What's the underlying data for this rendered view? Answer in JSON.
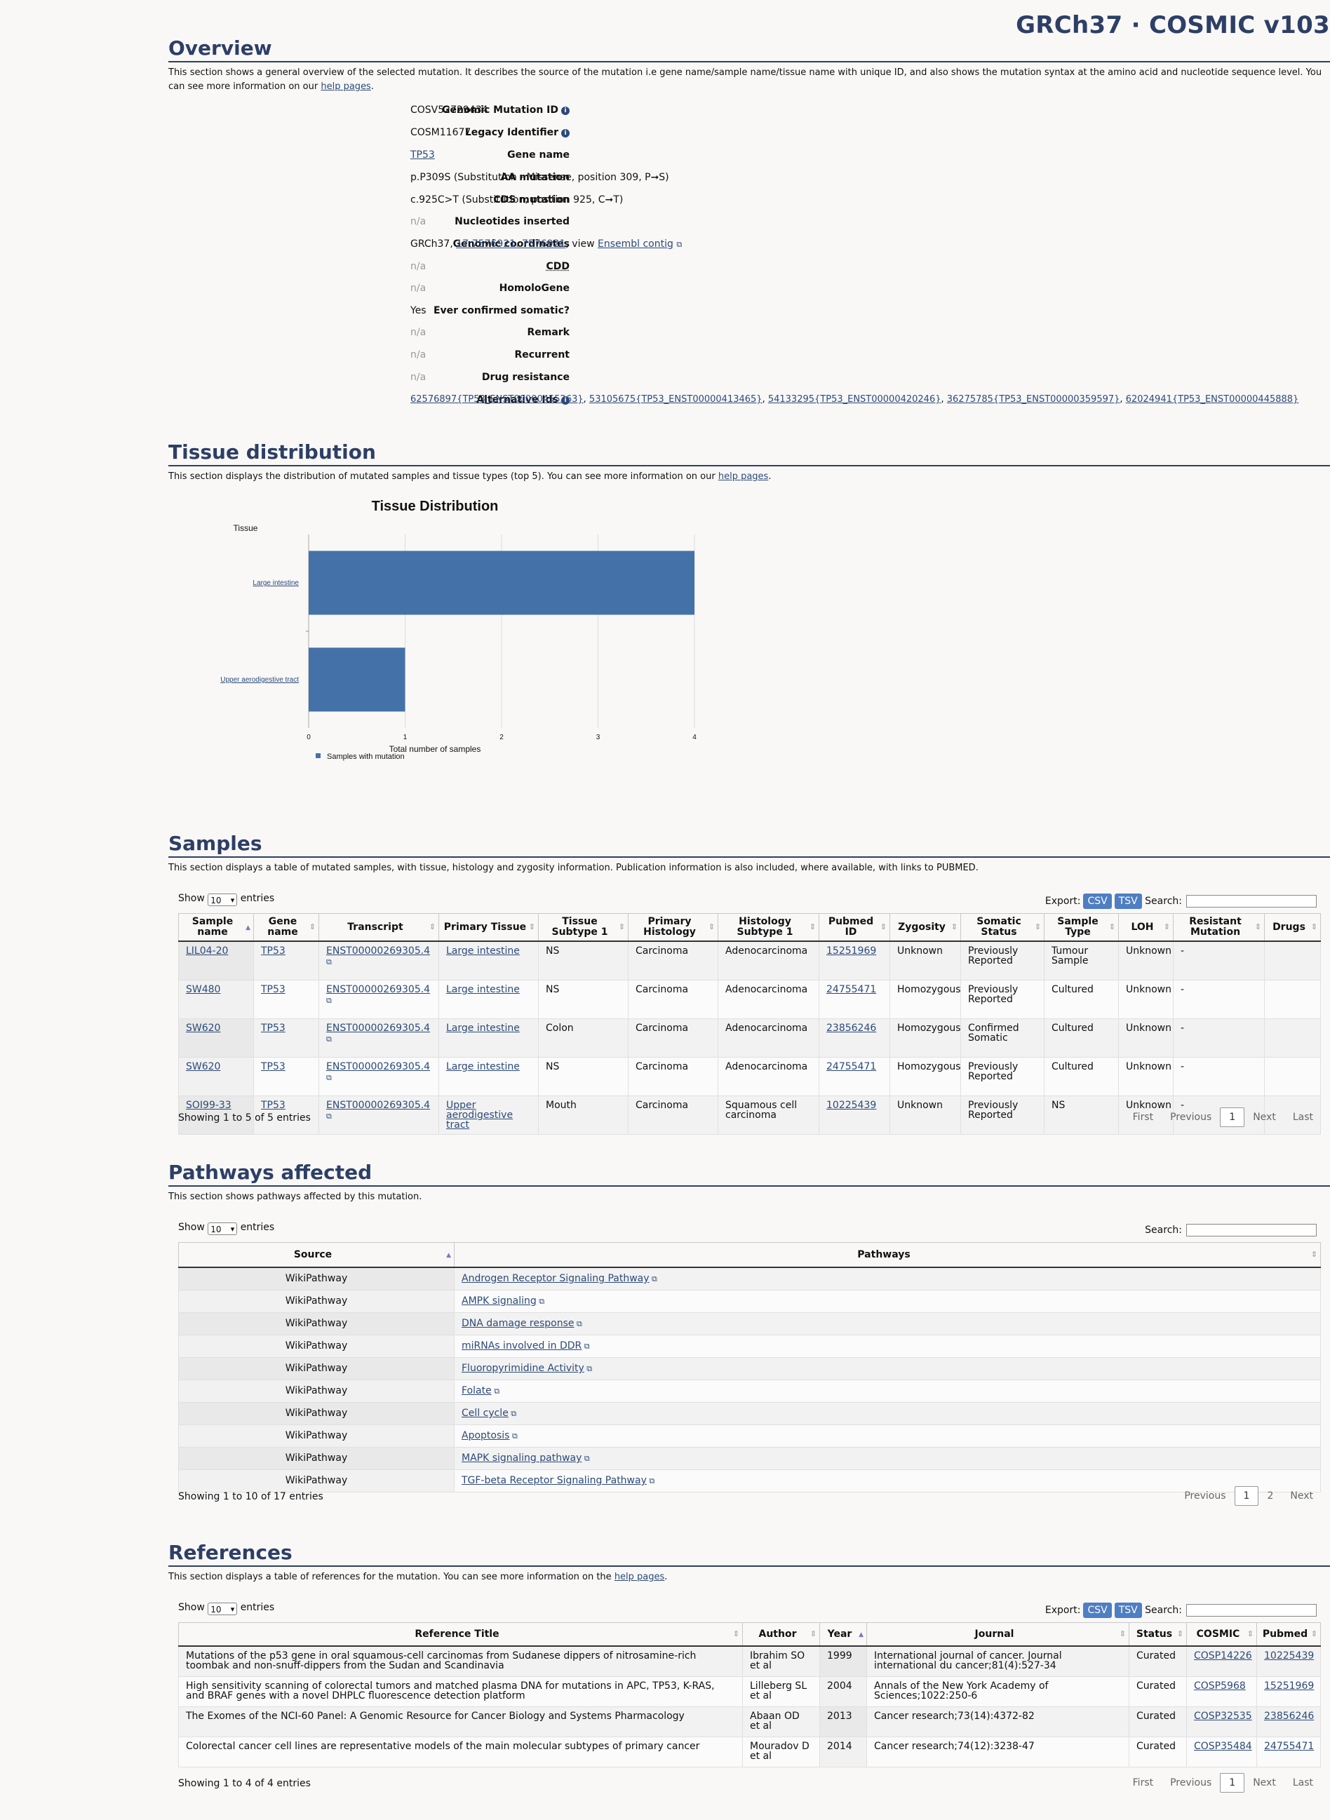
{
  "header": {
    "brand": "GRCh37 · COSMIC v103"
  },
  "overview": {
    "title": "Overview",
    "desc_pre": "This section shows a general overview of the selected mutation. It describes the source of the mutation i.e gene name/sample name/tissue name with unique ID, and also shows the mutation syntax at the amino acid and nucleotide sequence level. You can see more information on our ",
    "desc_link": "help pages",
    "desc_post": ".",
    "genomic_mutation_id": {
      "label": "Genomic Mutation ID",
      "value": "COSV52729434"
    },
    "legacy_identifier": {
      "label": "Legacy Identifier",
      "value": "COSM11677"
    },
    "gene_name": {
      "label": "Gene name",
      "value": "TP53"
    },
    "aa_mutation": {
      "label": "AA mutation",
      "value": "p.P309S (Substitution - Missense, position 309, P➞S)"
    },
    "cds_mutation": {
      "label": "CDS mutation",
      "value": "c.925C>T (Substitution, position 925, C➞T)"
    },
    "nucleotides_inserted": {
      "label": "Nucleotides inserted",
      "value": "n/a"
    },
    "genomic_coordinates": {
      "label": "Genomic coordinates",
      "prefix": "GRCh37, ",
      "coord": "17:7576921..7576921",
      "mid": ", view ",
      "link": "Ensembl contig"
    },
    "cdd": {
      "label": "CDD",
      "value": "n/a"
    },
    "homologene": {
      "label": "HomoloGene",
      "value": "n/a"
    },
    "ever_confirmed": {
      "label": "Ever confirmed somatic?",
      "value": "Yes"
    },
    "remark": {
      "label": "Remark",
      "value": "n/a"
    },
    "recurrent": {
      "label": "Recurrent",
      "value": "n/a"
    },
    "drug_resistance": {
      "label": "Drug resistance",
      "value": "n/a"
    },
    "alternative_ids": {
      "label": "Alternative Ids",
      "ids": [
        "62576897{TP53_ENST00000455263}",
        "53105675{TP53_ENST00000413465}",
        "54133295{TP53_ENST00000420246}",
        "36275785{TP53_ENST00000359597}",
        "62024941{TP53_ENST00000445888}"
      ]
    }
  },
  "tissue": {
    "title": "Tissue distribution",
    "desc_pre": "This section displays the distribution of mutated samples and tissue types (top 5). You can see more information on our ",
    "desc_link": "help pages",
    "desc_post": "."
  },
  "chart_data": {
    "type": "bar",
    "orientation": "horizontal",
    "title": "Tissue Distribution",
    "ylabel": "Tissue",
    "xlabel": "Total number of samples",
    "categories": [
      "Large intestine",
      "Upper aerodigestive tract"
    ],
    "values": [
      4,
      1
    ],
    "xlim": [
      0,
      4
    ],
    "xticks": [
      "0",
      "1",
      "2",
      "3",
      "4"
    ],
    "grid": true,
    "color": "#4472a8",
    "legend": {
      "label": "Samples with mutation",
      "placement": "bottom-left"
    }
  },
  "samples": {
    "title": "Samples",
    "desc": "This section displays a table of mutated samples, with tissue, histology and zygosity information. Publication information is also included, where available, with links to PUBMED.",
    "show_label": "Show",
    "entries_label": "entries",
    "page_size": "10",
    "export_label": "Export:",
    "csv": "CSV",
    "tsv": "TSV",
    "search_label": "Search:",
    "headers": [
      "Sample name",
      "Gene name",
      "Transcript",
      "Primary Tissue",
      "Tissue Subtype 1",
      "Primary Histology",
      "Histology Subtype 1",
      "Pubmed ID",
      "Zygosity",
      "Somatic Status",
      "Sample Type",
      "LOH",
      "Resistant Mutation",
      "Drugs"
    ],
    "rows": [
      [
        "LIL04-20",
        "TP53",
        "ENST00000269305.4",
        "Large intestine",
        "NS",
        "Carcinoma",
        "Adenocarcinoma",
        "15251969",
        "Unknown",
        "Previously Reported",
        "Tumour Sample",
        "Unknown",
        "-",
        ""
      ],
      [
        "SW480",
        "TP53",
        "ENST00000269305.4",
        "Large intestine",
        "NS",
        "Carcinoma",
        "Adenocarcinoma",
        "24755471",
        "Homozygous",
        "Previously Reported",
        "Cultured",
        "Unknown",
        "-",
        ""
      ],
      [
        "SW620",
        "TP53",
        "ENST00000269305.4",
        "Large intestine",
        "Colon",
        "Carcinoma",
        "Adenocarcinoma",
        "23856246",
        "Homozygous",
        "Confirmed Somatic",
        "Cultured",
        "Unknown",
        "-",
        ""
      ],
      [
        "SW620",
        "TP53",
        "ENST00000269305.4",
        "Large intestine",
        "NS",
        "Carcinoma",
        "Adenocarcinoma",
        "24755471",
        "Homozygous",
        "Previously Reported",
        "Cultured",
        "Unknown",
        "-",
        ""
      ],
      [
        "SOI99-33",
        "TP53",
        "ENST00000269305.4",
        "Upper aerodigestive tract",
        "Mouth",
        "Carcinoma",
        "Squamous cell carcinoma",
        "10225439",
        "Unknown",
        "Previously Reported",
        "NS",
        "Unknown",
        "-",
        ""
      ]
    ],
    "info": "Showing 1 to 5 of 5 entries",
    "pager": {
      "first": "First",
      "previous": "Previous",
      "current": "1",
      "next": "Next",
      "last": "Last"
    }
  },
  "pathways": {
    "title": "Pathways affected",
    "desc": "This section shows pathways affected by this mutation.",
    "show_label": "Show",
    "entries_label": "entries",
    "page_size": "10",
    "search_label": "Search:",
    "headers": [
      "Source",
      "Pathways"
    ],
    "rows": [
      [
        "WikiPathway",
        "Androgen Receptor Signaling Pathway"
      ],
      [
        "WikiPathway",
        "AMPK signaling"
      ],
      [
        "WikiPathway",
        "DNA damage response"
      ],
      [
        "WikiPathway",
        "miRNAs involved in DDR"
      ],
      [
        "WikiPathway",
        "Fluoropyrimidine Activity"
      ],
      [
        "WikiPathway",
        "Folate"
      ],
      [
        "WikiPathway",
        "Cell cycle"
      ],
      [
        "WikiPathway",
        "Apoptosis"
      ],
      [
        "WikiPathway",
        "MAPK signaling pathway"
      ],
      [
        "WikiPathway",
        "TGF-beta Receptor Signaling Pathway"
      ]
    ],
    "info": "Showing 1 to 10 of 17 entries",
    "pager": {
      "previous": "Previous",
      "current": "1",
      "page2": "2",
      "next": "Next"
    }
  },
  "references": {
    "title": "References",
    "desc_pre": "This section displays a table of references for the mutation. You can see more information on the ",
    "desc_link": "help pages",
    "desc_post": ".",
    "show_label": "Show",
    "entries_label": "entries",
    "page_size": "10",
    "export_label": "Export:",
    "csv": "CSV",
    "tsv": "TSV",
    "search_label": "Search:",
    "headers": [
      "Reference Title",
      "Author",
      "Year",
      "Journal",
      "Status",
      "COSMIC",
      "Pubmed"
    ],
    "rows": [
      [
        "Mutations of the p53 gene in oral squamous-cell carcinomas from Sudanese dippers of nitrosamine-rich toombak and non-snuff-dippers from the Sudan and Scandinavia",
        "Ibrahim SO et al",
        "1999",
        "International journal of cancer. Journal international du cancer;81(4):527-34",
        "Curated",
        "COSP14226",
        "10225439"
      ],
      [
        "High sensitivity scanning of colorectal tumors and matched plasma DNA for mutations in APC, TP53, K-RAS, and BRAF genes with a novel DHPLC fluorescence detection platform",
        "Lilleberg SL et al",
        "2004",
        "Annals of the New York Academy of Sciences;1022:250-6",
        "Curated",
        "COSP5968",
        "15251969"
      ],
      [
        "The Exomes of the NCI-60 Panel: A Genomic Resource for Cancer Biology and Systems Pharmacology",
        "Abaan OD et al",
        "2013",
        "Cancer research;73(14):4372-82",
        "Curated",
        "COSP32535",
        "23856246"
      ],
      [
        "Colorectal cancer cell lines are representative models of the main molecular subtypes of primary cancer",
        "Mouradov D et al",
        "2014",
        "Cancer research;74(12):3238-47",
        "Curated",
        "COSP35484",
        "24755471"
      ]
    ],
    "info": "Showing 1 to 4 of 4 entries",
    "pager": {
      "first": "First",
      "previous": "Previous",
      "current": "1",
      "next": "Next",
      "last": "Last"
    }
  }
}
